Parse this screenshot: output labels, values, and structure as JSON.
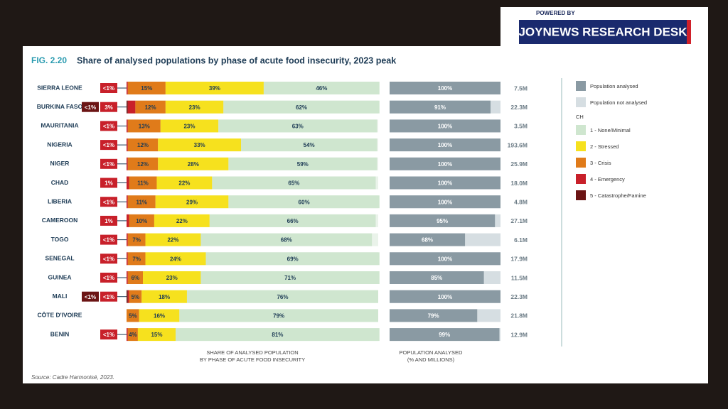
{
  "banner": {
    "powered_by": "POWERED BY",
    "name": "JOYNEWS RESEARCH DESK"
  },
  "chart_data": {
    "type": "stacked-bar",
    "fig_label": "FIG. 2.20",
    "title": "Share of analysed populations by phase of acute food insecurity, 2023 peak",
    "categories": [
      "SIERRA LEONE",
      "BURKINA FASO",
      "MAURITANIA",
      "NIGERIA",
      "NIGER",
      "CHAD",
      "LIBERIA",
      "CAMEROON",
      "TOGO",
      "SENEGAL",
      "GUINEA",
      "MALI",
      "CÔTE D'IVOIRE",
      "BENIN"
    ],
    "xlim": [
      0,
      100
    ],
    "x_label": [
      "SHARE OF ANALYSED POPULATION",
      "BY PHASE OF ACUTE FOOD INSECURITY"
    ],
    "series": [
      {
        "name": "5 - Catastrophe/Famine",
        "color": "#6b1414",
        "values": [
          null,
          0.5,
          null,
          null,
          null,
          null,
          null,
          null,
          null,
          null,
          null,
          0.5,
          null,
          null
        ],
        "value_labels": [
          null,
          "<1%",
          null,
          null,
          null,
          null,
          null,
          null,
          null,
          null,
          null,
          "<1%",
          null,
          null
        ]
      },
      {
        "name": "4 - Emergency",
        "color": "#c8202a",
        "values": [
          0.5,
          3,
          0.5,
          0.5,
          0.5,
          1,
          0.5,
          1,
          0.5,
          0.5,
          0.5,
          0.5,
          null,
          0.5
        ],
        "value_labels": [
          "<1%",
          "3%",
          "<1%",
          "<1%",
          "<1%",
          "1%",
          "<1%",
          "1%",
          "<1%",
          "<1%",
          "<1%",
          "<1%",
          null,
          "<1%"
        ]
      },
      {
        "name": "3 - Crisis",
        "color": "#e07b1a",
        "values": [
          15,
          12,
          13,
          12,
          12,
          11,
          11,
          10,
          7,
          7,
          6,
          5,
          5,
          4
        ],
        "value_labels": [
          "15%",
          "12%",
          "13%",
          "12%",
          "12%",
          "11%",
          "11%",
          "10%",
          "7%",
          "7%",
          "6%",
          "5%",
          "5%",
          "4%"
        ]
      },
      {
        "name": "2 - Stressed",
        "color": "#f6e11e",
        "values": [
          39,
          23,
          23,
          33,
          28,
          22,
          29,
          22,
          22,
          24,
          23,
          18,
          16,
          15
        ],
        "value_labels": [
          "39%",
          "23%",
          "23%",
          "33%",
          "28%",
          "22%",
          "29%",
          "22%",
          "22%",
          "24%",
          "23%",
          "18%",
          "16%",
          "15%"
        ]
      },
      {
        "name": "1 - None/Minimal",
        "color": "#cfe6cf",
        "values": [
          46,
          62,
          63,
          54,
          59,
          65,
          60,
          66,
          68,
          69,
          71,
          76,
          79,
          81
        ],
        "value_labels": [
          "46%",
          "62%",
          "63%",
          "54%",
          "59%",
          "65%",
          "60%",
          "66%",
          "68%",
          "69%",
          "71%",
          "76%",
          "79%",
          "81%"
        ]
      }
    ],
    "legend_group": "CH",
    "analysed": {
      "name": "Population analysed",
      "not_name": "Population not analysed",
      "color": "#8a9aa3",
      "not_color": "#d6dee2",
      "xlim": [
        0,
        100
      ],
      "x_label": [
        "POPULATION ANALYSED",
        "(% AND MILLIONS)"
      ],
      "values": [
        100,
        91,
        100,
        100,
        100,
        100,
        100,
        95,
        68,
        100,
        85,
        100,
        79,
        99
      ],
      "value_labels": [
        "100%",
        "91%",
        "100%",
        "100%",
        "100%",
        "100%",
        "100%",
        "95%",
        "68%",
        "100%",
        "85%",
        "100%",
        "79%",
        "99%"
      ],
      "populations": [
        "7.5M",
        "22.3M",
        "3.5M",
        "193.6M",
        "25.9M",
        "18.0M",
        "4.8M",
        "27.1M",
        "6.1M",
        "17.9M",
        "11.5M",
        "22.3M",
        "21.8M",
        "12.9M"
      ]
    },
    "source": "Source: Cadre Harmonisé, 2023."
  }
}
